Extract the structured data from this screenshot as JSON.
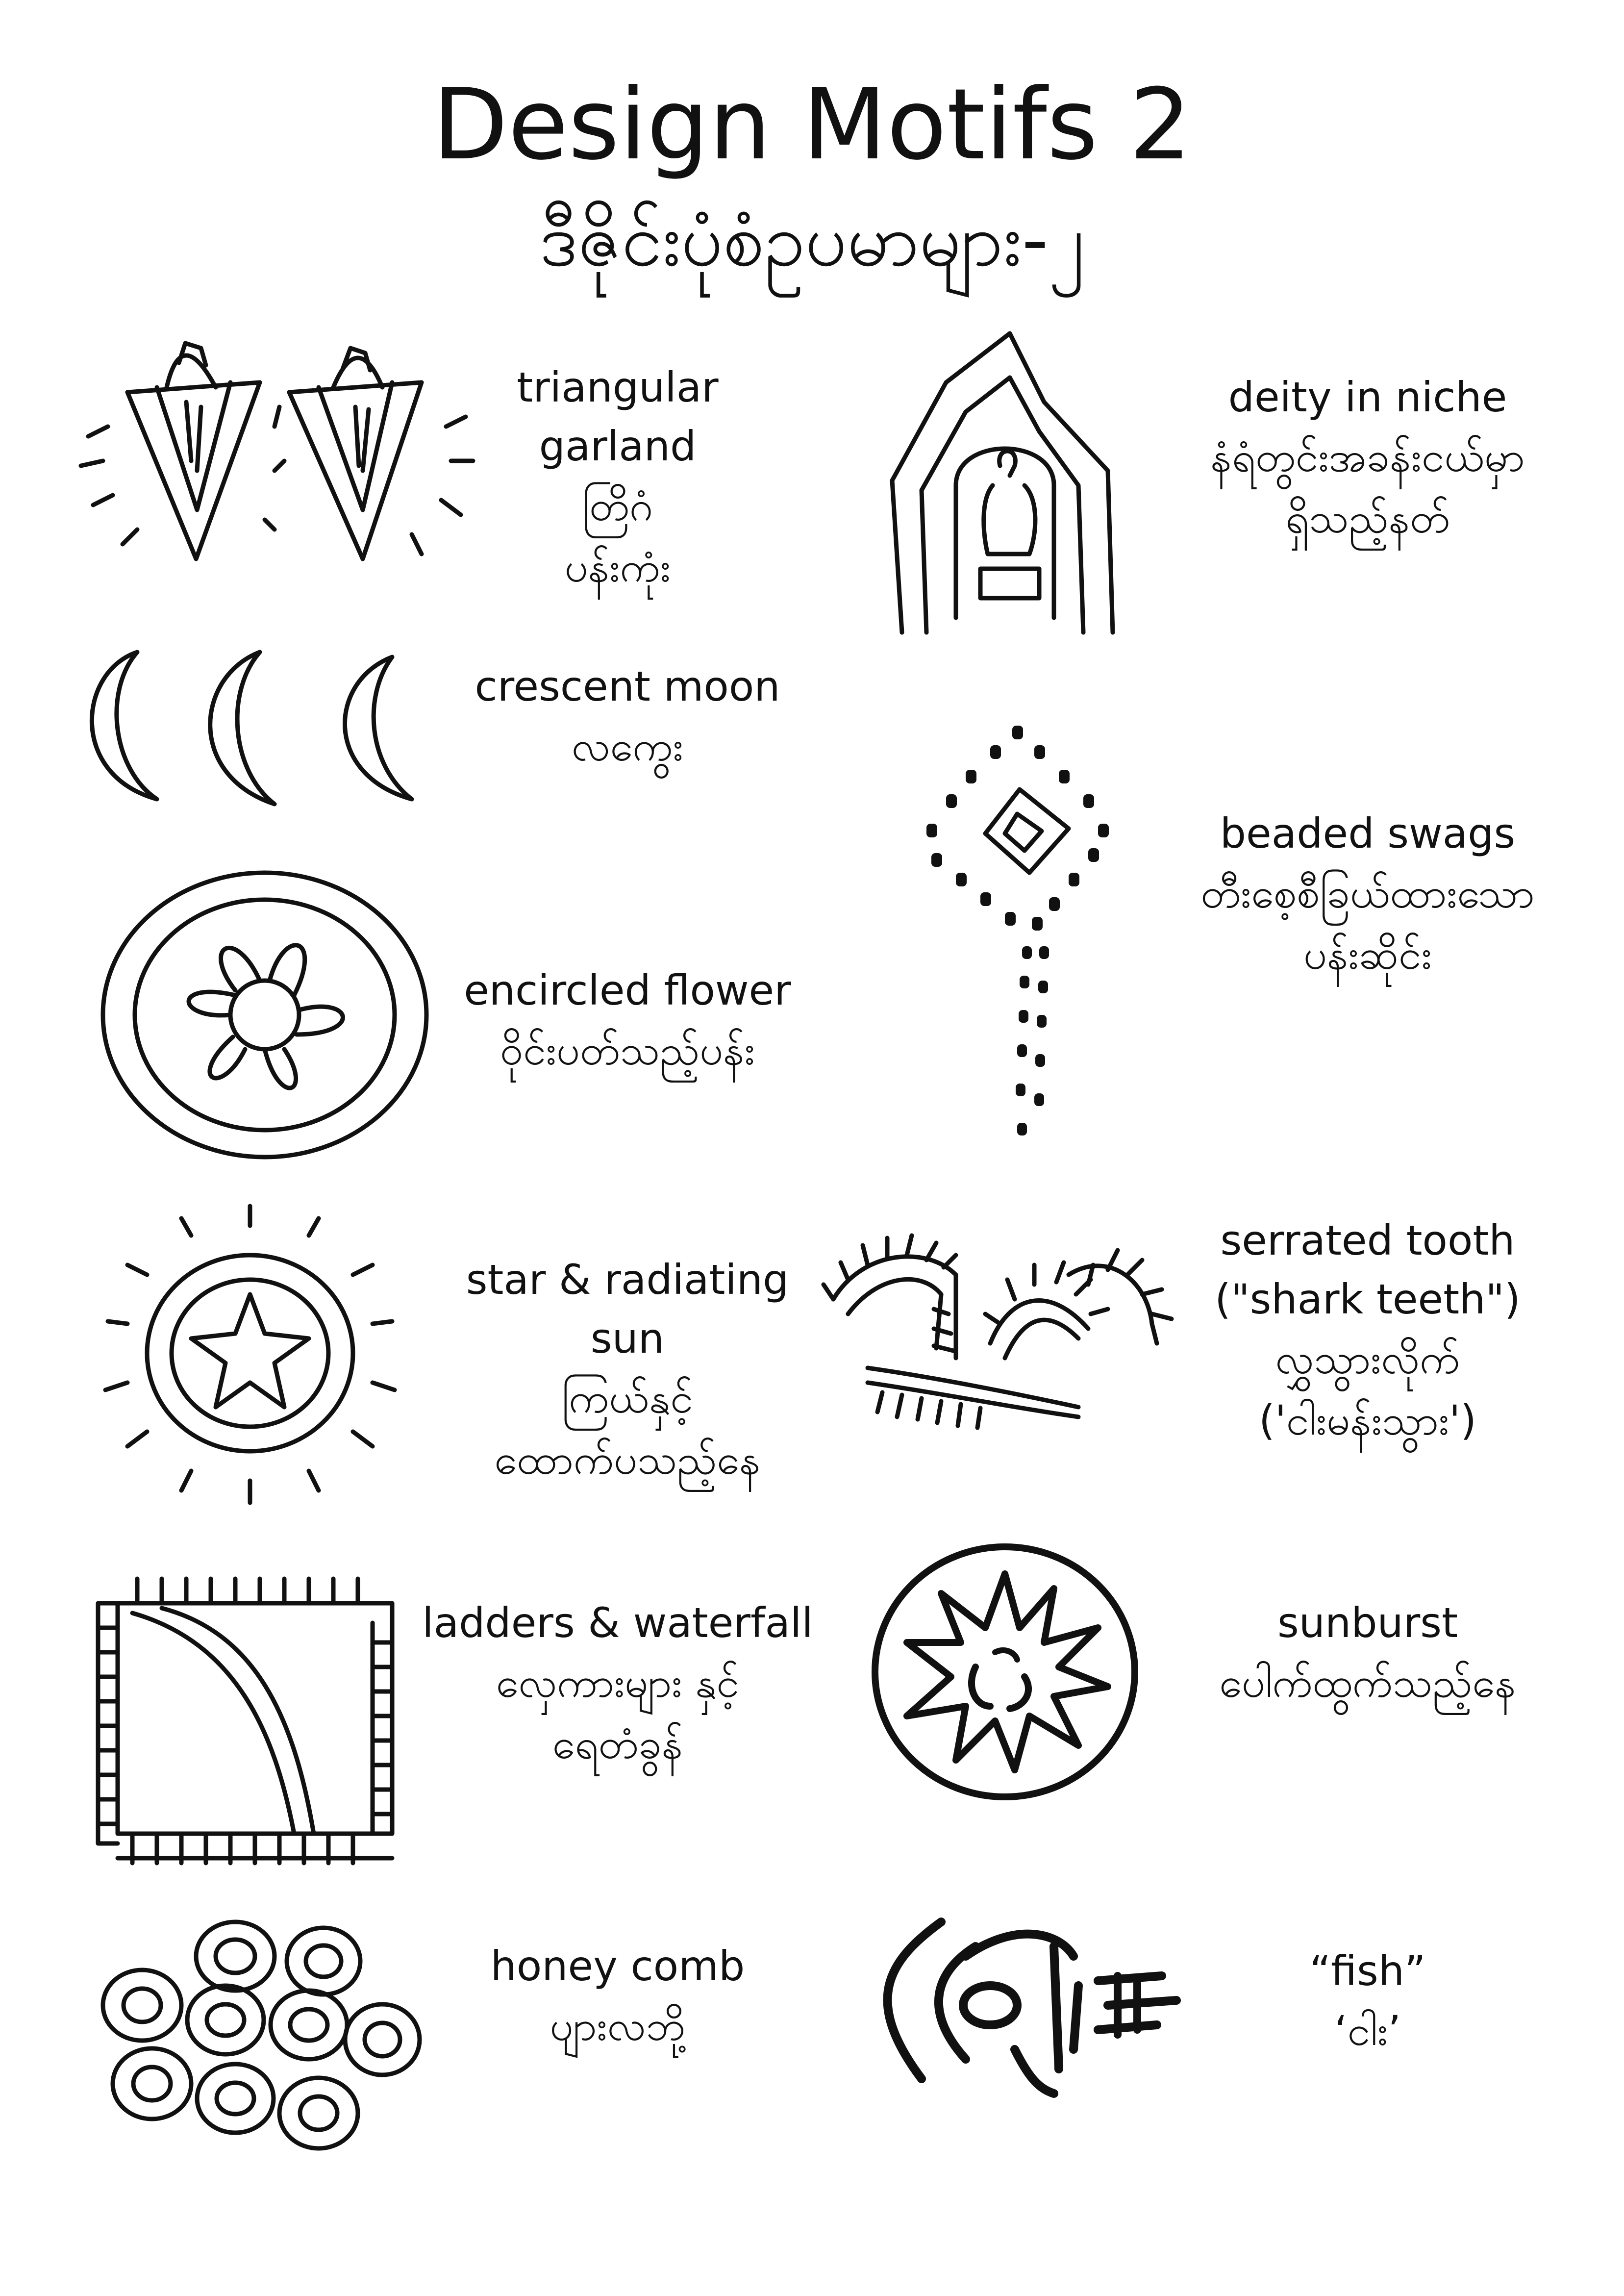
{
  "header": {
    "title": "Design Motifs 2",
    "subtitle": "ဒီဇိုင်းပုံစံဥပမာများ-၂"
  },
  "motifs": [
    {
      "id": "triangular-garland",
      "en_lines": [
        "triangular",
        "garland"
      ],
      "my_lines": [
        "တြိဂံ",
        "ပန်းကုံး"
      ]
    },
    {
      "id": "crescent-moon",
      "en_lines": [
        "crescent moon"
      ],
      "my_lines": [
        "လကွေး"
      ]
    },
    {
      "id": "encircled-flower",
      "en_lines": [
        "encircled flower"
      ],
      "my_lines": [
        "ဝိုင်းပတ်သည့်ပန်း"
      ]
    },
    {
      "id": "star-radiating-sun",
      "en_lines": [
        "star & radiating",
        "sun"
      ],
      "my_lines": [
        "ကြယ်နှင့်",
        "ထောက်ပသည့်နေ"
      ]
    },
    {
      "id": "ladders-waterfall",
      "en_lines": [
        "ladders & waterfall"
      ],
      "my_lines": [
        "လှေကားများ နှင့်",
        "ရေတံခွန်"
      ]
    },
    {
      "id": "honey-comb",
      "en_lines": [
        "honey comb"
      ],
      "my_lines": [
        "ပျားလဘို့"
      ]
    },
    {
      "id": "deity-in-niche",
      "en_lines": [
        "deity in niche"
      ],
      "my_lines": [
        "နံရံတွင်းအခန်းငယ်မှာ",
        "ရှိသည့်နတ်"
      ]
    },
    {
      "id": "beaded-swags",
      "en_lines": [
        "beaded swags"
      ],
      "my_lines": [
        "တီးစေ့စီခြယ်ထားသော",
        "ပန်းဆိုင်း"
      ]
    },
    {
      "id": "serrated-tooth",
      "en_lines": [
        "serrated tooth",
        "(\"shark teeth\")"
      ],
      "my_lines": [
        "လွှသွားလိုက်",
        "('ငါးမန်းသွား')"
      ]
    },
    {
      "id": "sunburst",
      "en_lines": [
        "sunburst"
      ],
      "my_lines": [
        "ပေါက်ထွက်သည့်နေ"
      ]
    },
    {
      "id": "fish",
      "en_lines": [
        "“fish”"
      ],
      "my_lines": [
        "‘ငါး’"
      ]
    }
  ]
}
